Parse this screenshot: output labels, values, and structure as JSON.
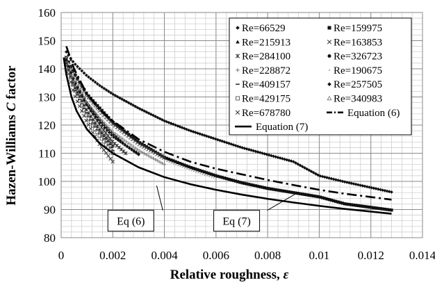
{
  "chart_data": {
    "type": "scatter",
    "xlabel": "Relative roughness, ",
    "xlabel_symbol": "ε",
    "ylabel": "Hazen-Williams ",
    "ylabel_symbol": "C",
    "ylabel_suffix": " factor",
    "xlim": [
      0,
      0.014
    ],
    "ylim": [
      80,
      160
    ],
    "x_ticks": [
      0,
      0.002,
      0.004,
      0.006,
      0.008,
      0.01,
      0.012,
      0.014
    ],
    "x_tick_labels": [
      "0",
      "0.002",
      "0.004",
      "0.006",
      "0.008",
      "0.01",
      "0.012",
      "0.014"
    ],
    "y_ticks": [
      80,
      90,
      100,
      110,
      120,
      130,
      140,
      150,
      160
    ],
    "y_tick_labels": [
      "80",
      "90",
      "100",
      "110",
      "120",
      "130",
      "140",
      "150",
      "160"
    ],
    "grid": true,
    "legend_position": "top-right",
    "series": [
      {
        "name": "Re=66529",
        "marker": "diamond",
        "points": [
          [
            0.0002,
            146
          ],
          [
            0.0005,
            142
          ],
          [
            0.001,
            137.5
          ],
          [
            0.0015,
            134
          ],
          [
            0.002,
            131
          ],
          [
            0.003,
            126
          ],
          [
            0.004,
            121.5
          ],
          [
            0.005,
            118
          ],
          [
            0.006,
            115
          ],
          [
            0.007,
            112
          ],
          [
            0.008,
            109.5
          ],
          [
            0.009,
            107
          ],
          [
            0.01,
            102
          ],
          [
            0.011,
            99.8
          ],
          [
            0.0128,
            96.2
          ]
        ]
      },
      {
        "name": "Re=159975",
        "marker": "square",
        "points": [
          [
            0.0002,
            144
          ],
          [
            0.0005,
            138.5
          ],
          [
            0.001,
            131
          ],
          [
            0.0015,
            126
          ],
          [
            0.002,
            121
          ],
          [
            0.003,
            114
          ],
          [
            0.004,
            108.5
          ],
          [
            0.005,
            105
          ],
          [
            0.006,
            102
          ],
          [
            0.007,
            99.5
          ],
          [
            0.008,
            97.5
          ],
          [
            0.009,
            96
          ],
          [
            0.01,
            94.5
          ],
          [
            0.011,
            92
          ],
          [
            0.0128,
            89.8
          ]
        ]
      },
      {
        "name": "Re=215913",
        "marker": "triangle",
        "points": [
          [
            0.0002,
            143
          ],
          [
            0.0005,
            136
          ],
          [
            0.001,
            128
          ],
          [
            0.0015,
            122
          ],
          [
            0.002,
            117
          ],
          [
            0.0025,
            113
          ],
          [
            0.003,
            110
          ]
        ]
      },
      {
        "name": "Re=163853",
        "marker": "x",
        "points": [
          [
            0.0002,
            144
          ],
          [
            0.0005,
            138
          ],
          [
            0.001,
            130.5
          ],
          [
            0.0015,
            125
          ],
          [
            0.002,
            120.5
          ],
          [
            0.003,
            113.5
          ],
          [
            0.004,
            108.5
          ]
        ]
      },
      {
        "name": "Re=284100",
        "marker": "star",
        "points": [
          [
            0.0002,
            143
          ],
          [
            0.0005,
            135
          ],
          [
            0.001,
            127
          ],
          [
            0.0015,
            120
          ],
          [
            0.002,
            114
          ],
          [
            0.0025,
            110
          ]
        ]
      },
      {
        "name": "Re=326723",
        "marker": "circle",
        "points": [
          [
            0.0002,
            142
          ],
          [
            0.0005,
            134
          ],
          [
            0.001,
            125
          ],
          [
            0.0015,
            118
          ],
          [
            0.002,
            112.5
          ]
        ]
      },
      {
        "name": "Re=228872",
        "marker": "plus",
        "points": [
          [
            0.0002,
            143
          ],
          [
            0.0005,
            136
          ],
          [
            0.001,
            128
          ],
          [
            0.0015,
            122.5
          ],
          [
            0.002,
            117.5
          ],
          [
            0.003,
            111
          ],
          [
            0.004,
            106
          ]
        ]
      },
      {
        "name": "Re=190675",
        "marker": "dot",
        "points": [
          [
            0.0002,
            144
          ],
          [
            0.0005,
            137
          ],
          [
            0.001,
            130
          ],
          [
            0.0015,
            124
          ],
          [
            0.002,
            119.5
          ],
          [
            0.003,
            112.5
          ],
          [
            0.004,
            107.5
          ],
          [
            0.005,
            104
          ],
          [
            0.006,
            101
          ]
        ]
      },
      {
        "name": "Re=409157",
        "marker": "dash",
        "points": [
          [
            0.0002,
            142
          ],
          [
            0.0005,
            133
          ],
          [
            0.001,
            124
          ],
          [
            0.0015,
            117
          ],
          [
            0.002,
            111
          ]
        ]
      },
      {
        "name": "Re=257505",
        "marker": "diamond",
        "points": [
          [
            0.0002,
            143
          ],
          [
            0.0005,
            135.5
          ],
          [
            0.001,
            127
          ],
          [
            0.0015,
            121
          ],
          [
            0.002,
            116
          ],
          [
            0.003,
            109.5
          ]
        ]
      },
      {
        "name": "Re=429175",
        "marker": "open-square",
        "points": [
          [
            0.0002,
            142
          ],
          [
            0.0005,
            133
          ],
          [
            0.001,
            123
          ],
          [
            0.0015,
            116
          ],
          [
            0.002,
            110
          ]
        ]
      },
      {
        "name": "Re=340983",
        "marker": "open-triangle",
        "points": [
          [
            0.0002,
            142
          ],
          [
            0.0005,
            134
          ],
          [
            0.001,
            125
          ],
          [
            0.0015,
            118.5
          ],
          [
            0.002,
            113
          ]
        ]
      },
      {
        "name": "Re=678780",
        "marker": "x",
        "points": [
          [
            0.0002,
            141
          ],
          [
            0.0005,
            131
          ],
          [
            0.001,
            121
          ],
          [
            0.0015,
            113
          ],
          [
            0.002,
            107
          ]
        ]
      },
      {
        "name": "Equation (6)",
        "style": "dash-dot",
        "points": [
          [
            0.0002,
            148
          ],
          [
            0.0005,
            140
          ],
          [
            0.001,
            131
          ],
          [
            0.0015,
            125.5
          ],
          [
            0.002,
            121.5
          ],
          [
            0.003,
            115
          ],
          [
            0.004,
            110.5
          ],
          [
            0.005,
            107
          ],
          [
            0.006,
            104.5
          ],
          [
            0.007,
            102.5
          ],
          [
            0.008,
            100.5
          ],
          [
            0.009,
            98.7
          ],
          [
            0.01,
            97
          ],
          [
            0.011,
            95.6
          ],
          [
            0.0128,
            93.5
          ]
        ]
      },
      {
        "name": "Equation (7)",
        "style": "solid",
        "points": [
          [
            0.0001,
            144
          ],
          [
            0.0002,
            138
          ],
          [
            0.0004,
            130
          ],
          [
            0.0006,
            125
          ],
          [
            0.001,
            118.5
          ],
          [
            0.0015,
            113.5
          ],
          [
            0.002,
            110
          ],
          [
            0.003,
            105
          ],
          [
            0.004,
            101.5
          ],
          [
            0.005,
            99
          ],
          [
            0.006,
            97
          ],
          [
            0.007,
            95.3
          ],
          [
            0.008,
            93.8
          ],
          [
            0.009,
            92.5
          ],
          [
            0.01,
            91.3
          ],
          [
            0.011,
            90.2
          ],
          [
            0.0128,
            88.5
          ]
        ]
      }
    ],
    "annotations": [
      {
        "text": "Eq (6)",
        "x": 0.0027,
        "y": 86,
        "arrow_to": [
          0.0037,
          98.5
        ]
      },
      {
        "text": "Eq (7)",
        "x": 0.0068,
        "y": 86,
        "arrow_to": [
          0.0092,
          96.2
        ]
      }
    ]
  }
}
